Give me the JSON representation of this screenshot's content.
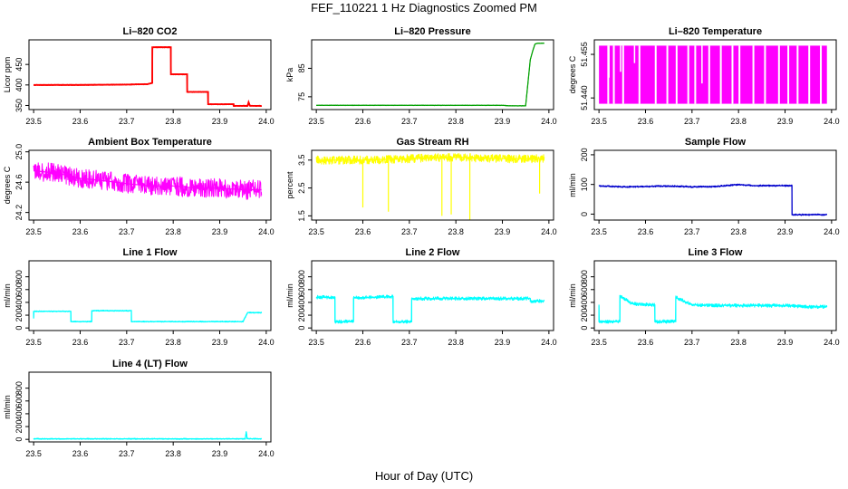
{
  "figure": {
    "title": "FEF_110221  1 Hz Diagnostics Zoomed PM",
    "xlabel": "Hour of Day (UTC)"
  },
  "chart_data": [
    {
      "type": "line",
      "title": "Li–820 CO2",
      "ylabel": "Licor ppm",
      "color": "#ff0000",
      "xlim": [
        23.49,
        24.01
      ],
      "ylim": [
        340,
        510
      ],
      "xticks": [
        "23.5",
        "23.6",
        "23.7",
        "23.8",
        "23.9",
        "24.0"
      ],
      "yticks": [
        {
          "v": 350,
          "label": "350"
        },
        {
          "v": 400,
          "label": "400"
        },
        {
          "v": 450,
          "label": "450"
        }
      ],
      "x": [
        23.5,
        23.6,
        23.7,
        23.745,
        23.755,
        23.755,
        23.795,
        23.795,
        23.83,
        23.83,
        23.875,
        23.875,
        23.93,
        23.93,
        23.96,
        23.962,
        23.965,
        23.99
      ],
      "y": [
        400,
        400,
        401,
        402,
        405,
        492,
        492,
        426,
        426,
        383,
        383,
        353,
        353,
        349,
        349,
        358,
        349,
        349
      ]
    },
    {
      "type": "line",
      "title": "Li–820 Pressure",
      "ylabel": "kPa",
      "color": "#00a000",
      "xlim": [
        23.49,
        24.01
      ],
      "ylim": [
        70.5,
        95
      ],
      "xticks": [
        "23.5",
        "23.6",
        "23.7",
        "23.8",
        "23.9",
        "24.0"
      ],
      "yticks": [
        {
          "v": 75,
          "label": "75"
        },
        {
          "v": 85,
          "label": "85"
        }
      ],
      "x": [
        23.5,
        23.6,
        23.7,
        23.8,
        23.9,
        23.915,
        23.95,
        23.955,
        23.96,
        23.965,
        23.97,
        23.975,
        23.99
      ],
      "y": [
        72.0,
        72.0,
        72.0,
        72.0,
        72.0,
        71.8,
        71.8,
        80,
        88,
        91,
        93.5,
        93.8,
        93.8
      ]
    },
    {
      "type": "area",
      "title": "Li–820 Temperature",
      "ylabel": "degrees C",
      "color": "#ff00ff",
      "xlim": [
        23.49,
        24.01
      ],
      "ylim": [
        51.436,
        51.46
      ],
      "xticks": [
        "23.5",
        "23.6",
        "23.7",
        "23.8",
        "23.9",
        "24.0"
      ],
      "yticks": [
        {
          "v": 51.44,
          "label": "51.440"
        },
        {
          "v": 51.455,
          "label": "51.455"
        }
      ],
      "x": [
        23.5,
        23.99
      ],
      "y": [
        51.438,
        51.458
      ],
      "gaps": [
        23.518,
        23.53,
        23.55,
        23.585,
        23.62,
        23.645,
        23.665,
        23.69,
        23.705,
        23.735,
        23.76,
        23.785,
        23.8,
        23.83,
        23.855,
        23.885,
        23.905,
        23.925,
        23.95,
        23.975
      ]
    },
    {
      "type": "line",
      "title": "Ambient Box Temperature",
      "ylabel": "degrees C",
      "color": "#ff00ff",
      "xlim": [
        23.49,
        24.01
      ],
      "ylim": [
        24.1,
        25.02
      ],
      "xticks": [
        "23.5",
        "23.6",
        "23.7",
        "23.8",
        "23.9",
        "24.0"
      ],
      "yticks": [
        {
          "v": 24.2,
          "label": "24.2"
        },
        {
          "v": 24.6,
          "label": "24.6"
        },
        {
          "v": 25.0,
          "label": "25.0"
        }
      ],
      "x": [
        23.5,
        23.55,
        23.6,
        23.65,
        23.7,
        23.75,
        23.8,
        23.85,
        23.9,
        23.95,
        23.99
      ],
      "y": [
        24.75,
        24.72,
        24.65,
        24.62,
        24.58,
        24.55,
        24.55,
        24.52,
        24.52,
        24.5,
        24.5
      ]
    },
    {
      "type": "line",
      "title": "Gas Stream RH",
      "ylabel": "percent",
      "color": "#ffff00",
      "xlim": [
        23.49,
        24.01
      ],
      "ylim": [
        1.35,
        3.85
      ],
      "xticks": [
        "23.5",
        "23.6",
        "23.7",
        "23.8",
        "23.9",
        "24.0"
      ],
      "yticks": [
        {
          "v": 1.5,
          "label": "1.5"
        },
        {
          "v": 2.5,
          "label": "2.5"
        },
        {
          "v": 3.5,
          "label": "3.5"
        }
      ],
      "x": [
        23.5,
        23.6,
        23.7,
        23.8,
        23.9,
        23.99
      ],
      "y": [
        3.5,
        3.5,
        3.55,
        3.6,
        3.55,
        3.55
      ],
      "dips": [
        [
          23.6,
          1.8
        ],
        [
          23.655,
          1.65
        ],
        [
          23.77,
          1.5
        ],
        [
          23.79,
          1.55
        ],
        [
          23.83,
          1.3
        ],
        [
          23.98,
          2.3
        ]
      ]
    },
    {
      "type": "line",
      "title": "Sample Flow",
      "ylabel": "ml/min",
      "color": "#0000cc",
      "xlim": [
        23.49,
        24.01
      ],
      "ylim": [
        -20,
        215
      ],
      "xticks": [
        "23.5",
        "23.6",
        "23.7",
        "23.8",
        "23.9",
        "24.0"
      ],
      "yticks": [
        {
          "v": 0,
          "label": "0"
        },
        {
          "v": 100,
          "label": "100"
        },
        {
          "v": 200,
          "label": "200"
        }
      ],
      "x": [
        23.5,
        23.55,
        23.6,
        23.65,
        23.7,
        23.75,
        23.78,
        23.8,
        23.83,
        23.915,
        23.915,
        23.925,
        23.99
      ],
      "y": [
        95,
        92,
        93,
        95,
        92,
        93,
        97,
        100,
        96,
        96,
        -2,
        -2,
        -2
      ]
    },
    {
      "type": "line",
      "title": "Line 1 Flow",
      "ylabel": "ml/min",
      "color": "#00ffff",
      "xlim": [
        23.49,
        24.01
      ],
      "ylim": [
        -40,
        1050
      ],
      "xticks": [
        "23.5",
        "23.6",
        "23.7",
        "23.8",
        "23.9",
        "24.0"
      ],
      "yticks": [
        {
          "v": 0,
          "label": "0"
        },
        {
          "v": 200,
          "label": "200"
        },
        {
          "v": 400,
          "label": "400"
        },
        {
          "v": 600,
          "label": "600"
        },
        {
          "v": 800,
          "label": "800"
        }
      ],
      "x": [
        23.5,
        23.5,
        23.58,
        23.58,
        23.625,
        23.625,
        23.71,
        23.71,
        23.95,
        23.96,
        23.99
      ],
      "y": [
        150,
        260,
        260,
        100,
        100,
        270,
        270,
        100,
        100,
        240,
        240
      ]
    },
    {
      "type": "line",
      "title": "Line 2 Flow",
      "ylabel": "ml/min",
      "color": "#00ffff",
      "xlim": [
        23.49,
        24.01
      ],
      "ylim": [
        -40,
        1050
      ],
      "xticks": [
        "23.5",
        "23.6",
        "23.7",
        "23.8",
        "23.9",
        "24.0"
      ],
      "yticks": [
        {
          "v": 0,
          "label": "0"
        },
        {
          "v": 200,
          "label": "200"
        },
        {
          "v": 400,
          "label": "400"
        },
        {
          "v": 600,
          "label": "600"
        },
        {
          "v": 800,
          "label": "800"
        }
      ],
      "x": [
        23.5,
        23.54,
        23.54,
        23.58,
        23.58,
        23.665,
        23.665,
        23.705,
        23.705,
        23.96,
        23.96,
        23.99
      ],
      "y": [
        480,
        480,
        100,
        100,
        470,
        490,
        100,
        100,
        460,
        460,
        420,
        420
      ]
    },
    {
      "type": "line",
      "title": "Line 3 Flow",
      "ylabel": "ml/min",
      "color": "#00ffff",
      "xlim": [
        23.49,
        24.01
      ],
      "ylim": [
        -40,
        1050
      ],
      "xticks": [
        "23.5",
        "23.6",
        "23.7",
        "23.8",
        "23.9",
        "24.0"
      ],
      "yticks": [
        {
          "v": 0,
          "label": "0"
        },
        {
          "v": 200,
          "label": "200"
        },
        {
          "v": 400,
          "label": "400"
        },
        {
          "v": 600,
          "label": "600"
        },
        {
          "v": 800,
          "label": "800"
        }
      ],
      "x": [
        23.5,
        23.5,
        23.545,
        23.545,
        23.57,
        23.62,
        23.62,
        23.665,
        23.665,
        23.7,
        23.8,
        23.9,
        23.95,
        23.99
      ],
      "y": [
        350,
        100,
        100,
        500,
        380,
        360,
        100,
        100,
        480,
        360,
        350,
        350,
        330,
        330
      ]
    },
    {
      "type": "line",
      "title": "Line 4 (LT) Flow",
      "ylabel": "ml/min",
      "color": "#00ffff",
      "xlim": [
        23.49,
        24.01
      ],
      "ylim": [
        -40,
        1050
      ],
      "xticks": [
        "23.5",
        "23.6",
        "23.7",
        "23.8",
        "23.9",
        "24.0"
      ],
      "yticks": [
        {
          "v": 0,
          "label": "0"
        },
        {
          "v": 200,
          "label": "200"
        },
        {
          "v": 400,
          "label": "400"
        },
        {
          "v": 600,
          "label": "600"
        },
        {
          "v": 800,
          "label": "800"
        }
      ],
      "x": [
        23.5,
        23.7,
        23.9,
        23.955,
        23.957,
        23.959,
        23.99
      ],
      "y": [
        8,
        8,
        8,
        8,
        120,
        10,
        8
      ]
    }
  ]
}
